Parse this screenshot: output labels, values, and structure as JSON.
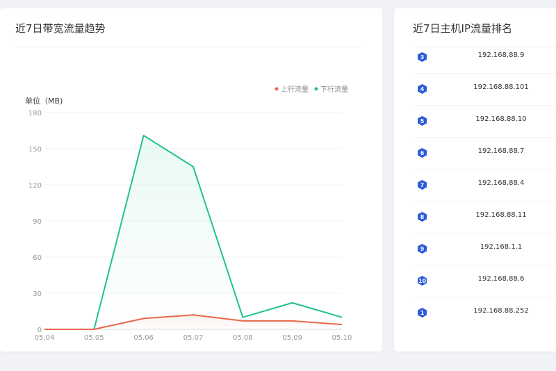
{
  "bandwidth_card": {
    "title": "近7日带宽流量趋势"
  },
  "ranking_card": {
    "title": "近7日主机IP流量排名",
    "items": [
      {
        "rank": "3",
        "ip": "192.168.88.9"
      },
      {
        "rank": "4",
        "ip": "192.168.88.101"
      },
      {
        "rank": "5",
        "ip": "192.168.88.10"
      },
      {
        "rank": "6",
        "ip": "192.168.88.7"
      },
      {
        "rank": "7",
        "ip": "192.168.88.4"
      },
      {
        "rank": "8",
        "ip": "192.168.88.11"
      },
      {
        "rank": "9",
        "ip": "192.168.1.1"
      },
      {
        "rank": "10",
        "ip": "192.168.88.6"
      },
      {
        "rank": "1",
        "ip": "192.168.88.252"
      }
    ]
  },
  "colors": {
    "upstream": "#e8684a",
    "downstream": "#1fc28a",
    "badge": "#2b5bd7"
  },
  "chart_data": {
    "type": "line",
    "title": "",
    "ylabel": "单位（MB)",
    "xlabel": "",
    "categories": [
      "05.04",
      "05.05",
      "05.06",
      "05.07",
      "05.08",
      "05.09",
      "05.10"
    ],
    "ylim": [
      0,
      180
    ],
    "yticks": [
      "0",
      "30",
      "60",
      "90",
      "120",
      "150",
      "180"
    ],
    "grid": true,
    "legend_position": "top-right",
    "series": [
      {
        "name": "上行流量",
        "color": "#e8684a",
        "values": [
          0,
          0,
          9,
          12,
          7,
          7,
          4
        ]
      },
      {
        "name": "下行流量",
        "color": "#1fc28a",
        "values": [
          0,
          0,
          161,
          135,
          10,
          22,
          10
        ]
      }
    ]
  }
}
